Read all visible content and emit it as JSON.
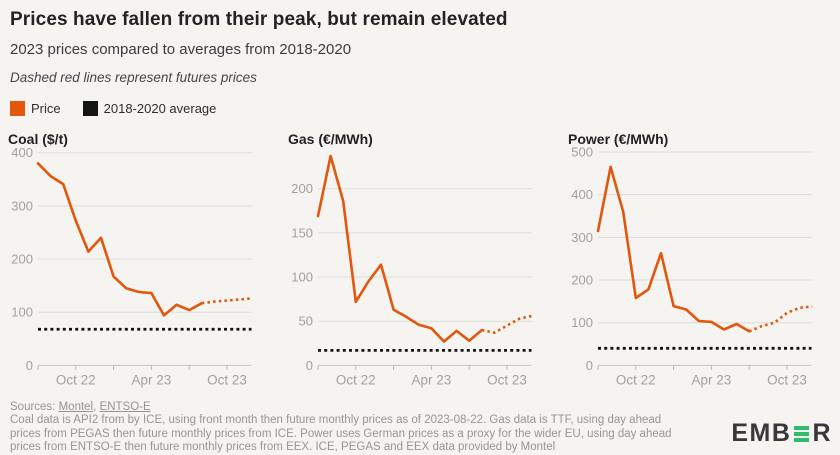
{
  "header": {
    "title": "Prices have fallen from their peak, but remain elevated",
    "subtitle": "2023 prices compared to averages from 2018-2020",
    "note": "Dashed red lines represent futures prices"
  },
  "legend": {
    "items": [
      {
        "label": "Price",
        "color": "#e2560d"
      },
      {
        "label": "2018-2020 average",
        "color": "#141414"
      }
    ]
  },
  "colors": {
    "price": "#e2560d",
    "average": "#141414"
  },
  "chart_data": [
    {
      "type": "line",
      "title": "Coal ($/t)",
      "x": [
        "Jul 22",
        "Aug 22",
        "Sep 22",
        "Oct 22",
        "Nov 22",
        "Dec 22",
        "Jan 23",
        "Feb 23",
        "Mar 23",
        "Apr 23",
        "May 23",
        "Jun 23",
        "Jul 23",
        "Aug 23",
        "Sep 23",
        "Oct 23",
        "Nov 23",
        "Dec 23"
      ],
      "series": [
        {
          "name": "Price",
          "values": [
            380,
            356,
            341,
            272,
            214,
            240,
            167,
            145,
            138,
            136,
            94,
            114,
            104,
            117,
            120,
            122,
            124,
            126
          ],
          "solid_until_index": 13,
          "dashed_note": "futures from Sep 23"
        },
        {
          "name": "2018-2020 average",
          "value": 68
        }
      ],
      "ylim": [
        0,
        400
      ],
      "yticks": [
        0,
        100,
        200,
        300,
        400
      ],
      "xticks": [
        {
          "index": 3,
          "label": "Oct 22"
        },
        {
          "index": 9,
          "label": "Apr 23"
        },
        {
          "index": 15,
          "label": "Oct 23"
        }
      ],
      "minor_tick_indices": [
        0,
        3,
        6,
        9,
        12,
        15
      ],
      "grid": true,
      "legend_position": "top-shared"
    },
    {
      "type": "line",
      "title": "Gas (€/MWh)",
      "x": [
        "Jul 22",
        "Aug 22",
        "Sep 22",
        "Oct 22",
        "Nov 22",
        "Dec 22",
        "Jan 23",
        "Feb 23",
        "Mar 23",
        "Apr 23",
        "May 23",
        "Jun 23",
        "Jul 23",
        "Aug 23",
        "Sep 23",
        "Oct 23",
        "Nov 23",
        "Dec 23"
      ],
      "series": [
        {
          "name": "Price",
          "values": [
            169,
            237,
            186,
            72,
            95,
            114,
            63,
            55,
            46,
            42,
            27,
            39,
            28,
            40,
            37,
            45,
            53,
            56
          ],
          "solid_until_index": 13,
          "dashed_note": "futures from Sep 23"
        },
        {
          "name": "2018-2020 average",
          "value": 17
        }
      ],
      "ylim": [
        0,
        240
      ],
      "yticks": [
        0,
        50,
        100,
        150,
        200
      ],
      "xticks": [
        {
          "index": 3,
          "label": "Oct 22"
        },
        {
          "index": 9,
          "label": "Apr 23"
        },
        {
          "index": 15,
          "label": "Oct 23"
        }
      ],
      "minor_tick_indices": [
        0,
        3,
        6,
        9,
        12,
        15
      ],
      "grid": true,
      "legend_position": "top-shared"
    },
    {
      "type": "line",
      "title": "Power (€/MWh)",
      "x": [
        "Jul 22",
        "Aug 22",
        "Sep 22",
        "Oct 22",
        "Nov 22",
        "Dec 22",
        "Jan 23",
        "Feb 23",
        "Mar 23",
        "Apr 23",
        "May 23",
        "Jun 23",
        "Jul 23",
        "Aug 23",
        "Sep 23",
        "Oct 23",
        "Nov 23",
        "Dec 23"
      ],
      "series": [
        {
          "name": "Price",
          "values": [
            315,
            465,
            360,
            158,
            178,
            263,
            139,
            131,
            104,
            102,
            84,
            97,
            80,
            92,
            100,
            123,
            135,
            138
          ],
          "solid_until_index": 12,
          "dashed_note": "futures from Aug 23"
        },
        {
          "name": "2018-2020 average",
          "value": 40
        }
      ],
      "ylim": [
        0,
        500
      ],
      "yticks": [
        0,
        100,
        200,
        300,
        400,
        500
      ],
      "xticks": [
        {
          "index": 3,
          "label": "Oct 22"
        },
        {
          "index": 9,
          "label": "Apr 23"
        },
        {
          "index": 15,
          "label": "Oct 23"
        }
      ],
      "minor_tick_indices": [
        0,
        3,
        6,
        9,
        12,
        15
      ],
      "grid": true,
      "legend_position": "top-shared"
    }
  ],
  "footer": {
    "sources_label": "Sources:",
    "source_links": [
      "Montel",
      "ENTSO-E"
    ],
    "comma": ",",
    "lines": [
      "Coal data is API2 from by ICE, using front month then future monthly prices as of 2023-08-22. Gas data is TTF, using day ahead",
      "prices from PEGAS then future monthly prices from ICE. Power uses German prices as a proxy for the wider EU, using day ahead",
      "prices from ENTSO-E then future monthly prices from EEX. ICE, PEGAS and EEX data provided by Montel"
    ]
  },
  "logo": {
    "text_before": "EMB",
    "text_after": "R"
  }
}
